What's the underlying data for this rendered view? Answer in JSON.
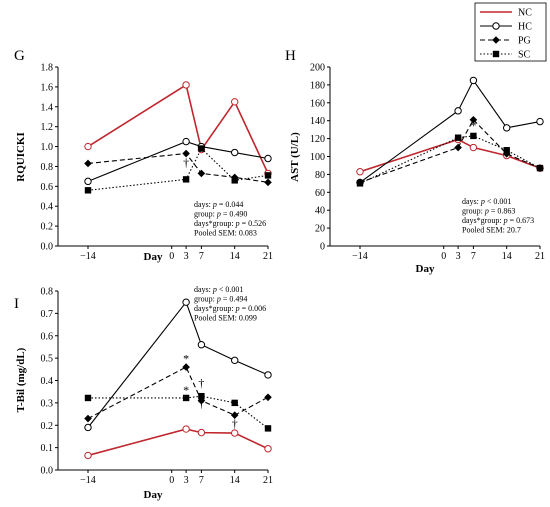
{
  "legend": {
    "entries": [
      {
        "name": "NC",
        "color": "#c0262d",
        "line": "solid",
        "marker": "none"
      },
      {
        "name": "HC",
        "color": "#000000",
        "line": "solid",
        "marker": "open-circle"
      },
      {
        "name": "PG",
        "color": "#000000",
        "line": "dashed",
        "marker": "filled-diamond"
      },
      {
        "name": "SC",
        "color": "#000000",
        "line": "dotted",
        "marker": "filled-square"
      }
    ],
    "placement": "top-right"
  },
  "chart_data": [
    {
      "panel": "G",
      "type": "line",
      "ylabel": "RQUICKI",
      "xlabel": "Day",
      "x": [
        -14,
        3,
        7,
        14,
        21
      ],
      "x_ticks": [
        "−14",
        "0",
        "3",
        "7",
        "14",
        "21"
      ],
      "ylim": [
        0,
        1.8
      ],
      "y_ticks": [
        "0.0",
        "0.2",
        "0.4",
        "0.6",
        "0.8",
        "1.0",
        "1.2",
        "1.4",
        "1.6",
        "1.8"
      ],
      "series": [
        {
          "name": "NC",
          "values": [
            1.0,
            1.62,
            0.97,
            1.45,
            0.73
          ]
        },
        {
          "name": "HC",
          "values": [
            0.65,
            1.05,
            1.0,
            0.94,
            0.88
          ]
        },
        {
          "name": "PG",
          "values": [
            0.83,
            0.93,
            0.73,
            0.69,
            0.64
          ]
        },
        {
          "name": "SC",
          "values": [
            0.56,
            0.67,
            0.98,
            0.66,
            0.71
          ]
        }
      ],
      "annotations": [
        {
          "text": "†",
          "x": 3,
          "y": 0.8
        }
      ],
      "stats": [
        {
          "prefix": "days: ",
          "p": "p",
          "rest": " = 0.044"
        },
        {
          "prefix": "group: ",
          "p": "p",
          "rest": " = 0.490"
        },
        {
          "prefix": "days*group: ",
          "p": "p",
          "rest": " = 0.526"
        },
        {
          "prefix": "Pooled SEM: 0.083",
          "p": "",
          "rest": ""
        }
      ]
    },
    {
      "panel": "H",
      "type": "line",
      "ylabel": "AST (U/L)",
      "xlabel": "Day",
      "x": [
        -14,
        3,
        7,
        14,
        21
      ],
      "x_ticks": [
        "−14",
        "0",
        "3",
        "7",
        "14",
        "21"
      ],
      "ylim": [
        0,
        200
      ],
      "y_ticks": [
        "0",
        "20",
        "40",
        "60",
        "80",
        "100",
        "120",
        "140",
        "160",
        "180",
        "200"
      ],
      "series": [
        {
          "name": "NC",
          "values": [
            83,
            119,
            110,
            101,
            87
          ]
        },
        {
          "name": "HC",
          "values": [
            71,
            151,
            185,
            132,
            139
          ]
        },
        {
          "name": "PG",
          "values": [
            71,
            110,
            141,
            103,
            87
          ]
        },
        {
          "name": "SC",
          "values": [
            70,
            121,
            123,
            107,
            87
          ]
        }
      ],
      "annotations": [
        {
          "text": "*",
          "x": 7,
          "y": 130
        }
      ],
      "stats": [
        {
          "prefix": "days: ",
          "p": "p",
          "rest": " < 0.001"
        },
        {
          "prefix": "group: ",
          "p": "p",
          "rest": " = 0.863"
        },
        {
          "prefix": "days*group: ",
          "p": "p",
          "rest": " = 0.673"
        },
        {
          "prefix": "Pooled SEM: 20.7",
          "p": "",
          "rest": ""
        }
      ]
    },
    {
      "panel": "I",
      "type": "line",
      "ylabel": "T-Bil (mg/dL)",
      "xlabel": "Day",
      "x": [
        -14,
        3,
        7,
        14,
        21
      ],
      "x_ticks": [
        "−14",
        "0",
        "3",
        "7",
        "14",
        "21"
      ],
      "ylim": [
        0,
        0.8
      ],
      "y_ticks": [
        "0.0",
        "0.1",
        "0.2",
        "0.3",
        "0.4",
        "0.5",
        "0.6",
        "0.7",
        "0.8"
      ],
      "series": [
        {
          "name": "NC",
          "values": [
            0.065,
            0.183,
            0.167,
            0.165,
            0.095
          ]
        },
        {
          "name": "HC",
          "values": [
            0.19,
            0.75,
            0.56,
            0.49,
            0.425
          ]
        },
        {
          "name": "PG",
          "values": [
            0.23,
            0.46,
            0.31,
            0.245,
            0.325
          ]
        },
        {
          "name": "SC",
          "values": [
            0.322,
            0.322,
            0.33,
            0.3,
            0.186
          ]
        }
      ],
      "annotations": [
        {
          "text": "*",
          "x": 3,
          "y": 0.48
        },
        {
          "text": "*",
          "x": 3,
          "y": 0.34
        },
        {
          "text": "†",
          "x": 7,
          "y": 0.37
        },
        {
          "text": "†",
          "x": 7,
          "y": 0.28
        },
        {
          "text": "†",
          "x": 14,
          "y": 0.19
        }
      ],
      "stats": [
        {
          "prefix": "days: ",
          "p": "p",
          "rest": " < 0.001"
        },
        {
          "prefix": "group: ",
          "p": "p",
          "rest": " = 0.494"
        },
        {
          "prefix": "days*group: ",
          "p": "p",
          "rest": " = 0.006"
        },
        {
          "prefix": "Pooled SEM: 0.099",
          "p": "",
          "rest": ""
        }
      ]
    }
  ]
}
